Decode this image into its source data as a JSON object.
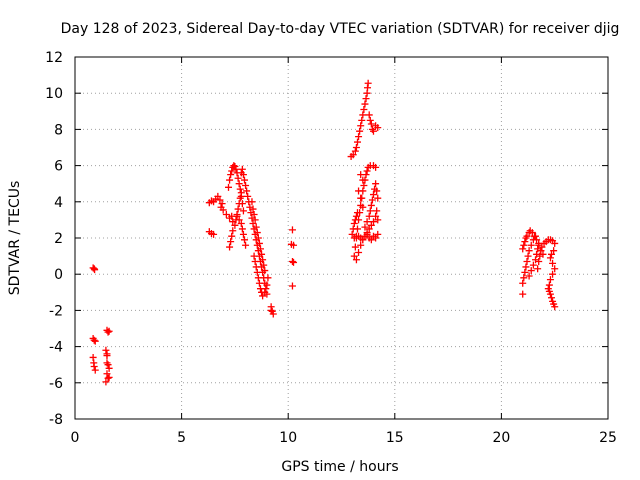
{
  "chart_data": {
    "type": "scatter",
    "title": "Day 128 of 2023, Sidereal Day-to-day VTEC variation (SDTVAR) for receiver djig",
    "xlabel": "GPS time / hours",
    "ylabel": "SDTVAR / TECUs",
    "xlim": [
      0,
      25
    ],
    "ylim": [
      -8,
      12
    ],
    "xticks": [
      "0",
      "5",
      "10",
      "15",
      "20",
      "25"
    ],
    "yticks": [
      "-8",
      "-6",
      "-4",
      "-2",
      "0",
      "2",
      "4",
      "6",
      "8",
      "10",
      "12"
    ],
    "grid": true,
    "marker": "+",
    "marker_color": "#ff0000",
    "series": [
      {
        "points": [
          [
            0.85,
            0.35
          ],
          [
            0.9,
            0.3
          ],
          [
            0.92,
            0.25
          ],
          [
            0.85,
            -3.55
          ],
          [
            0.9,
            -3.65
          ],
          [
            0.95,
            -3.7
          ],
          [
            0.85,
            -4.6
          ],
          [
            0.88,
            -4.9
          ],
          [
            0.9,
            -5.1
          ],
          [
            0.95,
            -5.3
          ],
          [
            1.5,
            -3.1
          ],
          [
            1.55,
            -3.2
          ],
          [
            1.6,
            -3.15
          ],
          [
            1.45,
            -4.2
          ],
          [
            1.5,
            -4.5
          ],
          [
            1.5,
            -4.9
          ],
          [
            1.55,
            -5.0
          ],
          [
            1.6,
            -5.2
          ],
          [
            1.5,
            -5.5
          ],
          [
            1.55,
            -5.75
          ],
          [
            1.45,
            -5.95
          ],
          [
            1.6,
            -5.7
          ],
          [
            1.5,
            -4.4
          ],
          [
            6.3,
            2.35
          ],
          [
            6.4,
            2.25
          ],
          [
            6.5,
            2.2
          ],
          [
            6.3,
            3.95
          ],
          [
            6.4,
            4.05
          ],
          [
            6.5,
            4.0
          ],
          [
            6.6,
            4.15
          ],
          [
            6.7,
            4.3
          ],
          [
            6.8,
            4.1
          ],
          [
            6.9,
            3.9
          ],
          [
            6.85,
            3.7
          ],
          [
            6.95,
            3.55
          ],
          [
            7.1,
            3.3
          ],
          [
            7.25,
            3.1
          ],
          [
            7.35,
            3.2
          ],
          [
            7.4,
            2.9
          ],
          [
            7.2,
            4.8
          ],
          [
            7.25,
            5.2
          ],
          [
            7.3,
            5.5
          ],
          [
            7.35,
            5.7
          ],
          [
            7.4,
            5.9
          ],
          [
            7.45,
            6.0
          ],
          [
            7.5,
            5.95
          ],
          [
            7.55,
            5.8
          ],
          [
            7.6,
            5.6
          ],
          [
            7.65,
            5.3
          ],
          [
            7.7,
            5.0
          ],
          [
            7.75,
            4.7
          ],
          [
            7.8,
            4.3
          ],
          [
            7.85,
            3.9
          ],
          [
            7.9,
            3.5
          ],
          [
            7.25,
            1.5
          ],
          [
            7.3,
            1.8
          ],
          [
            7.35,
            2.1
          ],
          [
            7.4,
            2.4
          ],
          [
            7.5,
            2.7
          ],
          [
            7.55,
            3.0
          ],
          [
            7.6,
            3.3
          ],
          [
            7.65,
            3.6
          ],
          [
            7.7,
            3.9
          ],
          [
            7.75,
            4.2
          ],
          [
            7.8,
            4.5
          ],
          [
            7.6,
            3.2
          ],
          [
            7.7,
            3.0
          ],
          [
            7.8,
            2.8
          ],
          [
            7.85,
            2.5
          ],
          [
            7.9,
            2.2
          ],
          [
            7.95,
            1.9
          ],
          [
            8.0,
            1.6
          ],
          [
            7.8,
            5.6
          ],
          [
            7.85,
            5.8
          ],
          [
            7.9,
            5.5
          ],
          [
            7.95,
            5.2
          ],
          [
            8.0,
            4.9
          ],
          [
            8.05,
            4.6
          ],
          [
            8.1,
            4.3
          ],
          [
            8.15,
            4.0
          ],
          [
            8.2,
            3.7
          ],
          [
            8.25,
            3.4
          ],
          [
            8.3,
            3.1
          ],
          [
            8.35,
            2.8
          ],
          [
            8.4,
            2.5
          ],
          [
            8.45,
            2.2
          ],
          [
            8.5,
            1.9
          ],
          [
            8.55,
            1.6
          ],
          [
            8.6,
            1.3
          ],
          [
            8.65,
            1.0
          ],
          [
            8.7,
            0.7
          ],
          [
            8.75,
            0.4
          ],
          [
            8.8,
            0.1
          ],
          [
            8.85,
            -0.2
          ],
          [
            8.9,
            -0.5
          ],
          [
            8.95,
            -0.8
          ],
          [
            9.0,
            -1.1
          ],
          [
            8.3,
            4.0
          ],
          [
            8.35,
            3.6
          ],
          [
            8.4,
            3.3
          ],
          [
            8.45,
            3.0
          ],
          [
            8.5,
            2.6
          ],
          [
            8.55,
            2.3
          ],
          [
            8.6,
            2.0
          ],
          [
            8.65,
            1.7
          ],
          [
            8.7,
            1.4
          ],
          [
            8.75,
            1.1
          ],
          [
            8.8,
            0.8
          ],
          [
            8.85,
            0.5
          ],
          [
            8.9,
            0.2
          ],
          [
            8.4,
            1.0
          ],
          [
            8.45,
            0.7
          ],
          [
            8.5,
            0.4
          ],
          [
            8.55,
            0.1
          ],
          [
            8.6,
            -0.2
          ],
          [
            8.65,
            -0.5
          ],
          [
            8.7,
            -0.8
          ],
          [
            8.75,
            -1.0
          ],
          [
            8.8,
            -1.2
          ],
          [
            8.9,
            -1.0
          ],
          [
            9.0,
            -0.6
          ],
          [
            9.05,
            -0.2
          ],
          [
            9.2,
            -1.8
          ],
          [
            9.25,
            -2.05
          ],
          [
            9.3,
            -2.2
          ],
          [
            9.2,
            -2.0
          ],
          [
            10.2,
            2.45
          ],
          [
            10.15,
            1.65
          ],
          [
            10.25,
            1.6
          ],
          [
            10.2,
            0.7
          ],
          [
            10.25,
            0.65
          ],
          [
            10.2,
            -0.65
          ],
          [
            12.95,
            6.5
          ],
          [
            13.05,
            6.6
          ],
          [
            13.15,
            6.8
          ],
          [
            13.2,
            7.0
          ],
          [
            13.25,
            7.3
          ],
          [
            13.3,
            7.6
          ],
          [
            13.35,
            7.9
          ],
          [
            13.4,
            8.2
          ],
          [
            13.45,
            8.5
          ],
          [
            13.5,
            8.8
          ],
          [
            13.55,
            9.1
          ],
          [
            13.6,
            9.4
          ],
          [
            13.65,
            9.7
          ],
          [
            13.7,
            10.0
          ],
          [
            13.72,
            10.3
          ],
          [
            13.75,
            10.55
          ],
          [
            13.8,
            8.8
          ],
          [
            13.85,
            8.5
          ],
          [
            13.9,
            8.3
          ],
          [
            13.95,
            8.0
          ],
          [
            14.0,
            7.9
          ],
          [
            14.1,
            8.2
          ],
          [
            14.2,
            8.1
          ],
          [
            13.1,
            1.0
          ],
          [
            13.15,
            1.5
          ],
          [
            13.2,
            2.0
          ],
          [
            13.25,
            2.5
          ],
          [
            13.3,
            3.0
          ],
          [
            13.35,
            3.4
          ],
          [
            13.4,
            3.8
          ],
          [
            13.45,
            4.2
          ],
          [
            13.5,
            4.6
          ],
          [
            13.55,
            4.9
          ],
          [
            13.6,
            5.2
          ],
          [
            13.65,
            5.5
          ],
          [
            13.7,
            5.7
          ],
          [
            13.75,
            5.9
          ],
          [
            13.85,
            6.0
          ],
          [
            14.0,
            6.0
          ],
          [
            14.1,
            5.9
          ],
          [
            13.0,
            2.2
          ],
          [
            13.05,
            2.5
          ],
          [
            13.1,
            2.8
          ],
          [
            13.15,
            3.0
          ],
          [
            13.2,
            3.2
          ],
          [
            13.25,
            3.4
          ],
          [
            13.2,
            0.8
          ],
          [
            13.3,
            1.2
          ],
          [
            13.4,
            1.6
          ],
          [
            13.5,
            1.9
          ],
          [
            13.6,
            2.1
          ],
          [
            13.7,
            2.3
          ],
          [
            13.8,
            2.5
          ],
          [
            13.9,
            2.7
          ],
          [
            14.0,
            2.9
          ],
          [
            14.1,
            3.2
          ],
          [
            14.15,
            3.5
          ],
          [
            13.1,
            2.0
          ],
          [
            13.2,
            2.1
          ],
          [
            13.3,
            2.1
          ],
          [
            13.4,
            2.0
          ],
          [
            13.5,
            1.9
          ],
          [
            13.6,
            2.1
          ],
          [
            13.7,
            2.2
          ],
          [
            13.8,
            2.0
          ],
          [
            13.9,
            1.9
          ],
          [
            14.0,
            2.1
          ],
          [
            14.1,
            2.0
          ],
          [
            14.2,
            2.2
          ],
          [
            13.6,
            2.6
          ],
          [
            13.7,
            2.9
          ],
          [
            13.8,
            3.2
          ],
          [
            13.85,
            3.5
          ],
          [
            13.9,
            3.8
          ],
          [
            13.95,
            4.1
          ],
          [
            14.0,
            4.4
          ],
          [
            14.05,
            4.7
          ],
          [
            14.1,
            5.0
          ],
          [
            14.15,
            4.6
          ],
          [
            14.2,
            4.2
          ],
          [
            14.2,
            3.0
          ],
          [
            13.4,
            5.5
          ],
          [
            13.5,
            5.2
          ],
          [
            13.3,
            4.6
          ],
          [
            13.4,
            4.2
          ],
          [
            13.5,
            3.7
          ],
          [
            21.0,
            -1.1
          ],
          [
            21.0,
            -0.5
          ],
          [
            21.05,
            -0.2
          ],
          [
            21.1,
            0.1
          ],
          [
            21.15,
            0.4
          ],
          [
            21.2,
            0.7
          ],
          [
            21.25,
            1.0
          ],
          [
            21.3,
            1.3
          ],
          [
            21.4,
            1.6
          ],
          [
            21.5,
            1.9
          ],
          [
            21.6,
            2.1
          ],
          [
            21.0,
            1.4
          ],
          [
            21.05,
            1.6
          ],
          [
            21.1,
            1.8
          ],
          [
            21.15,
            2.0
          ],
          [
            21.2,
            2.1
          ],
          [
            21.3,
            2.3
          ],
          [
            21.35,
            2.4
          ],
          [
            21.45,
            2.3
          ],
          [
            21.55,
            2.1
          ],
          [
            21.65,
            1.9
          ],
          [
            21.75,
            1.6
          ],
          [
            21.85,
            1.3
          ],
          [
            21.95,
            1.1
          ],
          [
            21.7,
            0.3
          ],
          [
            21.75,
            0.7
          ],
          [
            21.8,
            1.0
          ],
          [
            21.85,
            1.3
          ],
          [
            21.9,
            1.5
          ],
          [
            22.0,
            1.7
          ],
          [
            22.1,
            1.8
          ],
          [
            22.2,
            1.9
          ],
          [
            22.3,
            1.9
          ],
          [
            22.4,
            1.85
          ],
          [
            22.5,
            1.7
          ],
          [
            22.45,
            1.3
          ],
          [
            22.35,
            1.1
          ],
          [
            22.3,
            0.9
          ],
          [
            22.4,
            0.6
          ],
          [
            22.5,
            0.3
          ],
          [
            22.4,
            0.0
          ],
          [
            22.3,
            -0.3
          ],
          [
            22.25,
            -0.6
          ],
          [
            21.3,
            -0.1
          ],
          [
            21.4,
            0.2
          ],
          [
            21.5,
            0.5
          ],
          [
            21.6,
            0.8
          ],
          [
            21.65,
            1.1
          ],
          [
            21.7,
            1.4
          ],
          [
            21.75,
            1.7
          ],
          [
            22.2,
            -0.8
          ],
          [
            22.25,
            -0.95
          ],
          [
            22.3,
            -1.1
          ],
          [
            22.35,
            -1.3
          ],
          [
            22.4,
            -1.5
          ],
          [
            22.45,
            -1.65
          ],
          [
            22.5,
            -1.8
          ]
        ]
      }
    ]
  }
}
